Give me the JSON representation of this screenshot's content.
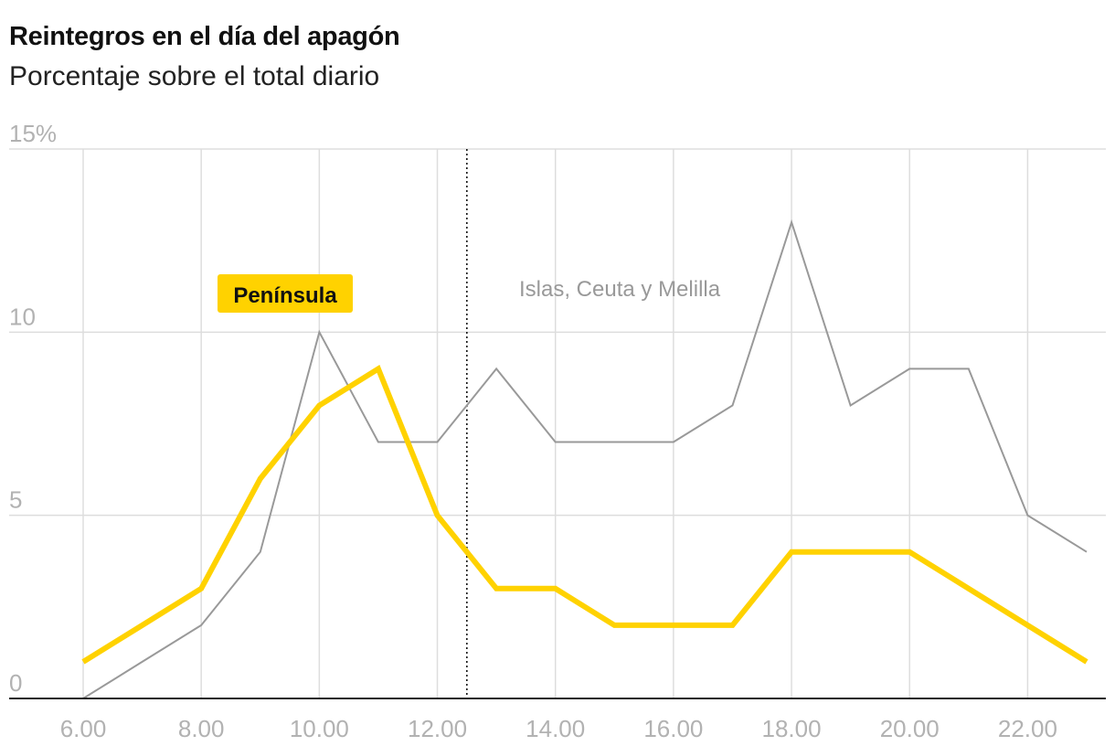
{
  "title": "Reintegros en el día del apagón",
  "subtitle": "Porcentaje sobre el total diario",
  "colors": {
    "peninsula": "#ffd200",
    "islas": "#999999",
    "grid": "#dddddd",
    "axis_text": "#b2b2b2",
    "annotation": "#999999",
    "baseline": "#222222",
    "marker": "#111111"
  },
  "chart_data": {
    "type": "line",
    "title": "Reintegros en el día del apagón",
    "subtitle": "Porcentaje sobre el total diario",
    "x": [
      6,
      7,
      8,
      9,
      10,
      11,
      12,
      13,
      14,
      15,
      16,
      17,
      18,
      19,
      20,
      21,
      22,
      23
    ],
    "xlim": [
      6,
      23
    ],
    "ylim": [
      0,
      15
    ],
    "x_ticks": [
      6,
      8,
      10,
      12,
      14,
      16,
      18,
      20,
      22
    ],
    "x_tick_labels": [
      "6.00",
      "8.00",
      "10.00",
      "12.00",
      "14.00",
      "16.00",
      "18.00",
      "20.00",
      "22.00"
    ],
    "y_ticks": [
      0,
      5,
      10,
      15
    ],
    "y_tick_labels": [
      "0",
      "5",
      "10",
      "15%"
    ],
    "grid": true,
    "vertical_marker_x": 12.5,
    "series": [
      {
        "name": "Islas, Ceuta y Melilla",
        "color": "#999999",
        "values": [
          0,
          1,
          2,
          4,
          10,
          7,
          7,
          9,
          7,
          7,
          7,
          8,
          13,
          8,
          9,
          9,
          5,
          4
        ]
      },
      {
        "name": "Península",
        "color": "#ffd200",
        "values": [
          1,
          2,
          3,
          6,
          8,
          9,
          5,
          3,
          3,
          2,
          2,
          2,
          4,
          4,
          4,
          3,
          2,
          1
        ]
      }
    ]
  }
}
